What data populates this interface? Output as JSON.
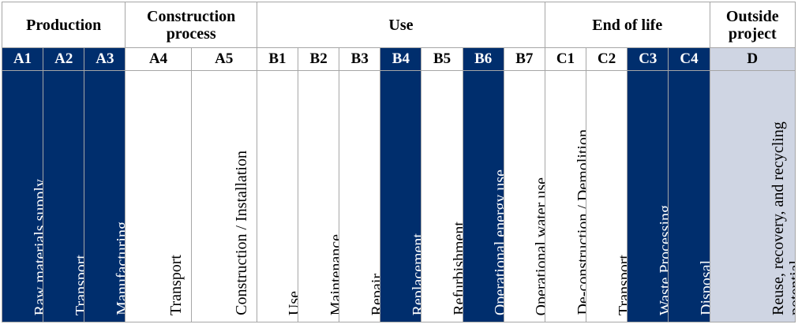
{
  "stages": [
    {
      "label": "Production",
      "span": 3
    },
    {
      "label": "Construction process",
      "span": 2
    },
    {
      "label": "Use",
      "span": 7
    },
    {
      "label": "End of life",
      "span": 4
    },
    {
      "label": "Outside project",
      "span": 1
    }
  ],
  "modules": [
    {
      "code": "A1",
      "desc": "Raw materials supply",
      "style": "dark"
    },
    {
      "code": "A2",
      "desc": "Transport",
      "style": "dark"
    },
    {
      "code": "A3",
      "desc": "Manufacturing",
      "style": "dark"
    },
    {
      "code": "A4",
      "desc": "Transport",
      "style": "light"
    },
    {
      "code": "A5",
      "desc": "Construction / Installation",
      "style": "light"
    },
    {
      "code": "B1",
      "desc": "Use",
      "style": "light"
    },
    {
      "code": "B2",
      "desc": "Maintenance",
      "style": "light"
    },
    {
      "code": "B3",
      "desc": "Repair",
      "style": "light"
    },
    {
      "code": "B4",
      "desc": "Replacement",
      "style": "dark"
    },
    {
      "code": "B5",
      "desc": "Refurbishment",
      "style": "light"
    },
    {
      "code": "B6",
      "desc": "Operational energy use",
      "style": "dark"
    },
    {
      "code": "B7",
      "desc": "Operational water use",
      "style": "light"
    },
    {
      "code": "C1",
      "desc": "De-construction / Demolition",
      "style": "light"
    },
    {
      "code": "C2",
      "desc": "Transport",
      "style": "light"
    },
    {
      "code": "C3",
      "desc": "Waste Processing",
      "style": "dark"
    },
    {
      "code": "C4",
      "desc": "Disposal",
      "style": "dark"
    },
    {
      "code": "D",
      "desc": "Reuse, recovery, and recycling potential",
      "style": "grey"
    }
  ],
  "colors": {
    "dark_fill": "#002e6d",
    "grey_fill": "#cfd5e3",
    "border": "#a6a6a6"
  }
}
